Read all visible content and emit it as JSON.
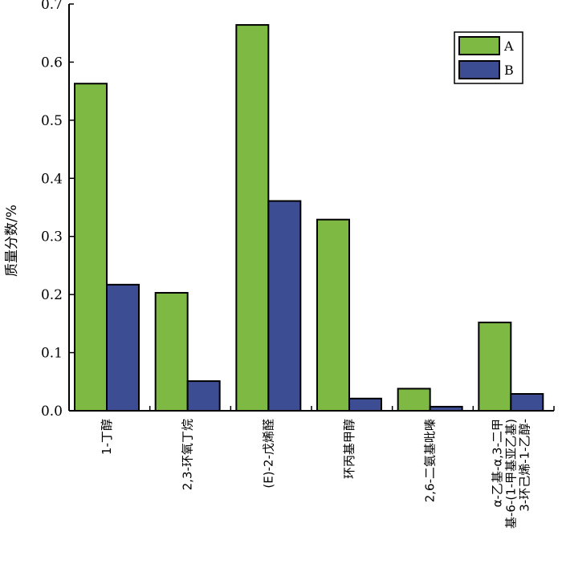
{
  "chart_data": {
    "type": "bar",
    "ylabel": "质量分数/%",
    "xlabel": "",
    "ylim": [
      0,
      0.7
    ],
    "yticks": [
      "0.0",
      "0.1",
      "0.2",
      "0.3",
      "0.4",
      "0.5",
      "0.6",
      "0.7"
    ],
    "categories": [
      [
        "1-丁醇"
      ],
      [
        "2,3-环氧丁烷"
      ],
      [
        "(E)-2-戊烯醛"
      ],
      [
        "环丙基甲醇"
      ],
      [
        "2,6-二氨基吡嗪"
      ],
      [
        "α-乙基-α,3-二甲",
        "基-6-(1-甲基亚乙基)",
        "3-环己烯-1-乙醇-"
      ]
    ],
    "series": [
      {
        "name": "A",
        "color": "#7db943",
        "values": [
          0.563,
          0.203,
          0.664,
          0.329,
          0.038,
          0.152
        ]
      },
      {
        "name": "B",
        "color": "#3d4d93",
        "values": [
          0.217,
          0.051,
          0.361,
          0.021,
          0.007,
          0.029
        ]
      }
    ],
    "legend_position": "top-right",
    "grid": false
  }
}
